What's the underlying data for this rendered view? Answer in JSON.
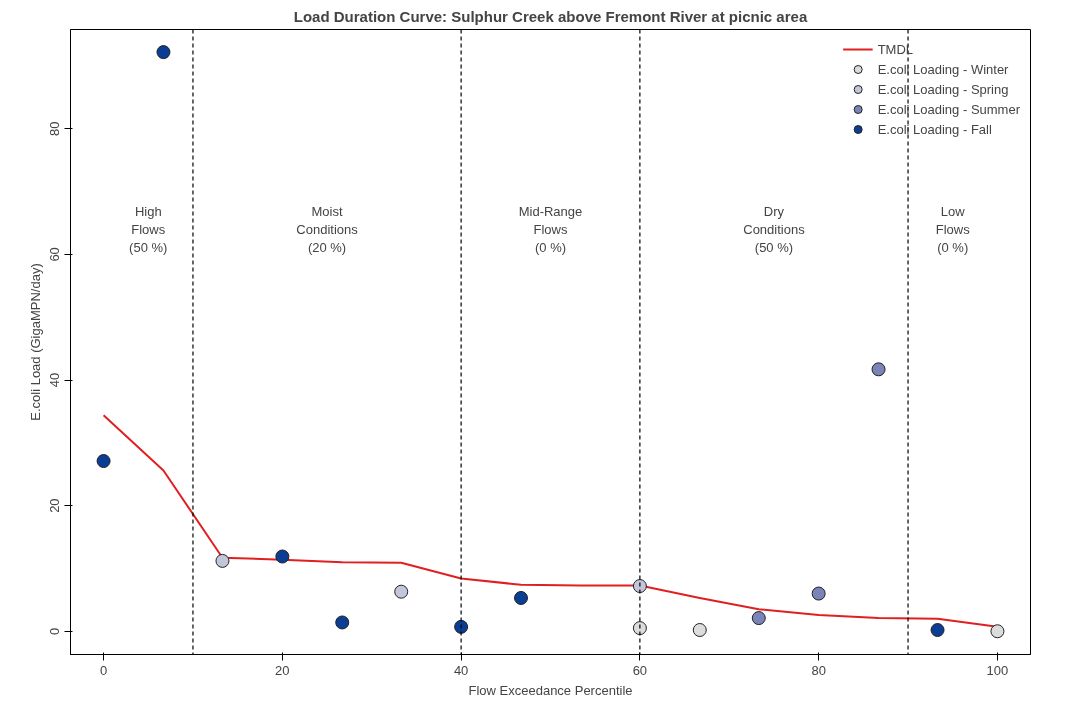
{
  "chart_data": {
    "type": "scatter",
    "title": "Load Duration Curve: Sulphur Creek above Fremont River at picnic area",
    "xlabel": "Flow Exceedance Percentile",
    "ylabel": "E.coli Load (GigaMPN/day)",
    "xlim": [
      -3.7,
      103.7
    ],
    "ylim": [
      -3.7,
      95.8
    ],
    "xticks": [
      0,
      20,
      40,
      60,
      80,
      100
    ],
    "yticks": [
      0,
      20,
      40,
      60,
      80
    ],
    "grid": false,
    "legend": "top right",
    "marker": "circle",
    "series": [
      {
        "name": "TMDL",
        "type": "line",
        "color": "#e02020",
        "line_style": "solid",
        "marker": "none",
        "x": [
          0,
          6.7,
          13.3,
          20,
          26.7,
          33.3,
          40,
          46.7,
          53.3,
          60,
          66.7,
          73.3,
          80,
          86.7,
          93.3,
          100
        ],
        "values": [
          34.4,
          25.6,
          11.7,
          11.4,
          11.0,
          10.9,
          8.4,
          7.4,
          7.3,
          7.3,
          5.3,
          3.5,
          2.6,
          2.1,
          2.0,
          0.7
        ]
      },
      {
        "name": "E.coli Loading - Winter",
        "color": "#dcdcdc",
        "x": [
          60,
          66.7,
          100
        ],
        "values": [
          0.5,
          0.2,
          0
        ]
      },
      {
        "name": "E.coli Loading - Spring",
        "color": "#c3c6da",
        "x": [
          13.3,
          33.3,
          60
        ],
        "values": [
          11.2,
          6.3,
          7.2
        ]
      },
      {
        "name": "E.coli Loading - Summer",
        "color": "#7b84b8",
        "x": [
          73.3,
          80,
          86.7
        ],
        "values": [
          2.1,
          6.0,
          41.7
        ]
      },
      {
        "name": "E.coli Loading - Fall",
        "color": "#0a3d94",
        "x": [
          0,
          6.7,
          20,
          26.7,
          40,
          46.7,
          93.3
        ],
        "values": [
          27.1,
          92.2,
          11.9,
          1.4,
          0.7,
          5.3,
          0.2
        ]
      }
    ],
    "ref_lines": [
      {
        "axis": "x",
        "value": 10,
        "color": "#000000",
        "line_style": "dashed"
      },
      {
        "axis": "x",
        "value": 40,
        "color": "#000000",
        "line_style": "dashed"
      },
      {
        "axis": "x",
        "value": 60,
        "color": "#000000",
        "line_style": "dashed"
      },
      {
        "axis": "x",
        "value": 90,
        "color": "#000000",
        "line_style": "dashed"
      }
    ],
    "annotations": [
      "High\nFlows\n(50 %)",
      "Moist\nConditions\n(20 %)",
      "Mid-Range\nFlows\n(0 %)",
      "Dry\nConditions\n(50 %)",
      "Low\nFlows\n(0 %)"
    ]
  }
}
